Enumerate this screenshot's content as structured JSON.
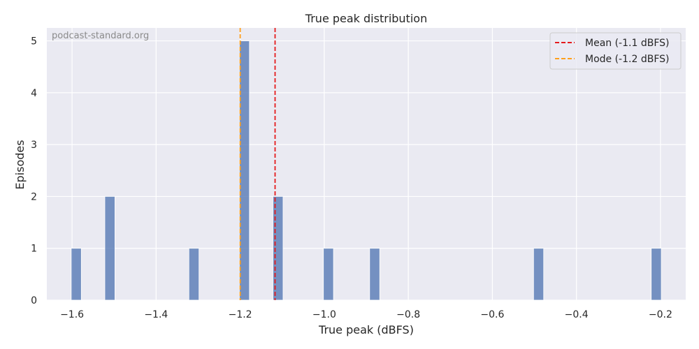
{
  "chart_data": {
    "type": "bar",
    "title": "True peak distribution",
    "xlabel": "True peak (dBFS)",
    "ylabel": "Episodes",
    "watermark": "podcast-standard.org",
    "xlim": [
      -1.66,
      -0.14
    ],
    "ylim": [
      0,
      5.25
    ],
    "bin_width": 0.024,
    "x": [
      -1.59,
      -1.51,
      -1.31,
      -1.19,
      -1.11,
      -0.99,
      -0.88,
      -0.49,
      -0.21
    ],
    "values": [
      1,
      2,
      1,
      5,
      2,
      1,
      1,
      1,
      1
    ],
    "bar_color": "#4c72b0",
    "xticks": [
      -1.6,
      -1.4,
      -1.2,
      -1.0,
      -0.8,
      -0.6,
      -0.4,
      -0.2
    ],
    "xtick_labels": [
      "−1.6",
      "−1.4",
      "−1.2",
      "−1.0",
      "−0.8",
      "−0.6",
      "−0.4",
      "−0.2"
    ],
    "yticks": [
      0,
      1,
      2,
      3,
      4,
      5
    ],
    "ytick_labels": [
      "0",
      "1",
      "2",
      "3",
      "4",
      "5"
    ],
    "grid": true,
    "reference_lines": [
      {
        "label": "Mean (-1.1 dBFS)",
        "x": -1.117,
        "color": "#e41a1c"
      },
      {
        "label": "Mode (-1.2 dBFS)",
        "x": -1.2,
        "color": "#ff9f1c"
      }
    ],
    "legend_position": "top-right"
  }
}
